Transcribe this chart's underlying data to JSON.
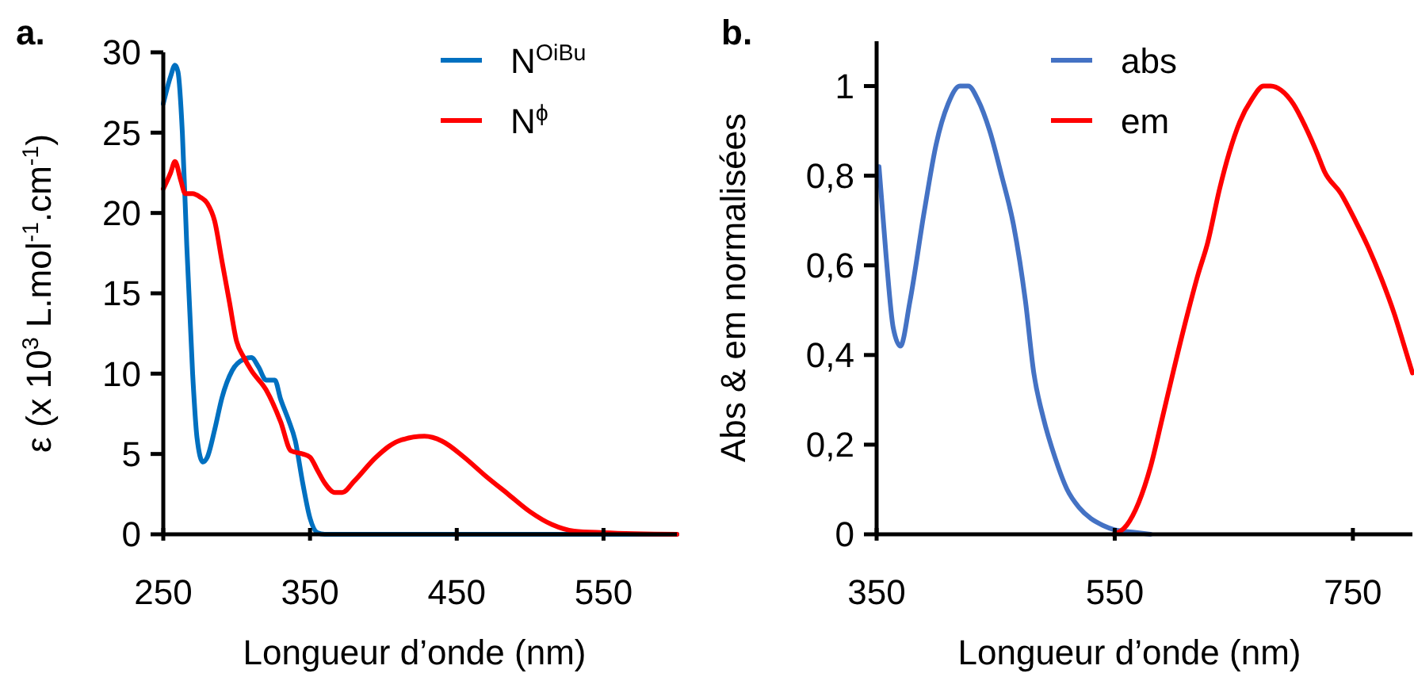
{
  "chart_data": [
    {
      "type": "line",
      "title": "a.",
      "xlabel": "Longueur d’onde (nm)",
      "ylabel": "ε (x 10$^{3}$ L.mol$^{-1}$.cm$^{-1}$)",
      "xlim": [
        250,
        600
      ],
      "ylim": [
        0,
        30
      ],
      "xticks": [
        250,
        350,
        450,
        550
      ],
      "yticks": [
        0,
        5,
        10,
        15,
        20,
        25,
        30
      ],
      "legend": "top right",
      "grid": false,
      "series": [
        {
          "name": "N$^{OiBu}$",
          "color": "#0070c0",
          "x": [
            250,
            255,
            258,
            260,
            263,
            266,
            270,
            273,
            277,
            280,
            285,
            290,
            297,
            305,
            310,
            315,
            320,
            326,
            330,
            335,
            340,
            345,
            350,
            355,
            360,
            600
          ],
          "values": [
            26.8,
            28.5,
            29.2,
            28.8,
            25,
            18,
            10,
            6,
            4.5,
            4.8,
            6.5,
            8.5,
            10.2,
            10.9,
            11,
            10.4,
            9.6,
            9.6,
            8.4,
            7.2,
            5.8,
            3.2,
            1,
            0.1,
            0,
            0
          ]
        },
        {
          "name": "N$^{ϕ}$",
          "color": "#ff0000",
          "x": [
            250,
            255,
            258,
            262,
            265,
            270,
            275,
            280,
            285,
            290,
            295,
            300,
            305,
            310,
            320,
            330,
            337,
            345,
            350,
            355,
            360,
            367,
            372,
            380,
            395,
            410,
            428,
            440,
            455,
            470,
            485,
            500,
            515,
            530,
            550,
            600
          ],
          "values": [
            21.5,
            22.5,
            23.2,
            22,
            21.2,
            21.2,
            21,
            20.6,
            19.5,
            17,
            14.5,
            12,
            11,
            10.2,
            9,
            7,
            5.2,
            5,
            4.8,
            4,
            3.2,
            2.6,
            2.6,
            3.3,
            4.8,
            5.8,
            6.1,
            5.8,
            4.8,
            3.6,
            2.5,
            1.4,
            0.6,
            0.2,
            0.1,
            0
          ]
        }
      ]
    },
    {
      "type": "line",
      "title": "b.",
      "xlabel": "Longueur d’onde (nm)",
      "ylabel": "Abs & em normalisées",
      "xlim": [
        350,
        800
      ],
      "ylim": [
        0,
        1.1
      ],
      "xticks": [
        350,
        550,
        750
      ],
      "yticks": [
        0,
        {
          "value": 0.2,
          "label": "0,2"
        },
        {
          "value": 0.4,
          "label": "0,4"
        },
        {
          "value": 0.6,
          "label": "0,6"
        },
        {
          "value": 0.8,
          "label": "0,8"
        },
        1
      ],
      "legend": "top",
      "grid": false,
      "series": [
        {
          "name": "abs",
          "color": "#4472c4",
          "x": [
            352,
            358,
            364,
            370,
            378,
            390,
            400,
            410,
            420,
            427,
            435,
            445,
            455,
            465,
            475,
            482,
            490,
            500,
            510,
            520,
            530,
            540,
            550,
            565,
            580
          ],
          "values": [
            0.82,
            0.62,
            0.46,
            0.42,
            0.52,
            0.72,
            0.87,
            0.96,
            1.0,
            1.0,
            0.97,
            0.9,
            0.8,
            0.69,
            0.52,
            0.36,
            0.26,
            0.17,
            0.1,
            0.06,
            0.035,
            0.02,
            0.01,
            0.005,
            0
          ]
        },
        {
          "name": "em",
          "color": "#ff0000",
          "x": [
            549,
            560,
            570,
            580,
            590,
            598,
            610,
            620,
            628,
            638,
            646,
            655,
            665,
            675,
            681,
            690,
            700,
            710,
            720,
            726,
            740,
            752,
            763,
            774,
            785,
            792,
            800
          ],
          "values": [
            0,
            0.02,
            0.07,
            0.15,
            0.26,
            0.35,
            0.48,
            0.58,
            0.65,
            0.77,
            0.85,
            0.92,
            0.97,
            1.0,
            1.0,
            0.99,
            0.96,
            0.91,
            0.85,
            0.81,
            0.76,
            0.7,
            0.64,
            0.57,
            0.49,
            0.43,
            0.36
          ]
        }
      ]
    }
  ]
}
